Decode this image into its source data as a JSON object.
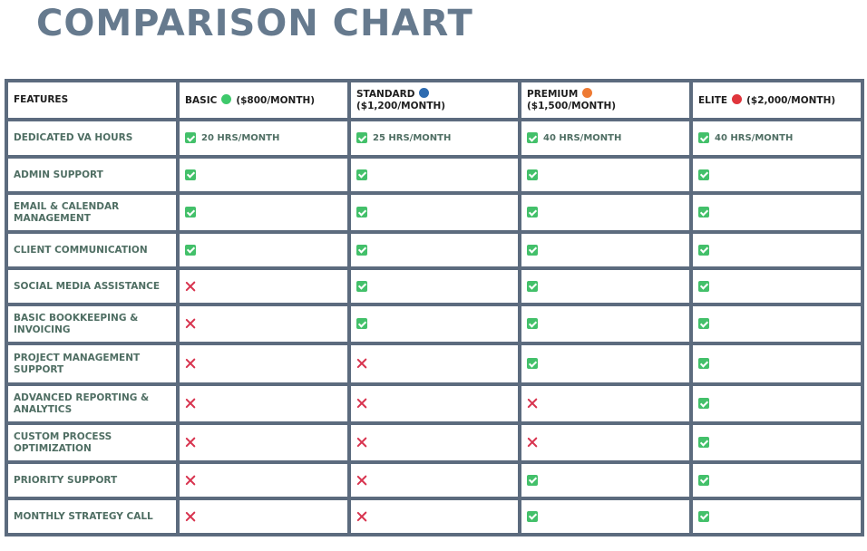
{
  "title": "Comparison Chart",
  "colors": {
    "title": "#667a8e",
    "border": "#5c6b7e",
    "feature_text": "#4f6e63",
    "check": "#43c06a",
    "cross": "#d8344f"
  },
  "header": {
    "features_label": "Features",
    "plans": [
      {
        "name": "Basic",
        "price": "($800/month)",
        "dot_color": "#3ec96b"
      },
      {
        "name": "Standard",
        "price": "($1,200/month)",
        "dot_color": "#2e6bb0"
      },
      {
        "name": "Premium",
        "price": "($1,500/month)",
        "dot_color": "#ee7a33"
      },
      {
        "name": "Elite",
        "price": "($2,000/month)",
        "dot_color": "#e0353c"
      }
    ]
  },
  "rows": [
    {
      "feature": "Dedicated VA Hours",
      "values": [
        "check",
        "check",
        "check",
        "check"
      ],
      "notes": [
        "20 hrs/month",
        "25 hrs/month",
        "40 hrs/month",
        "40 hrs/month"
      ]
    },
    {
      "feature": "Admin Support",
      "values": [
        "check",
        "check",
        "check",
        "check"
      ]
    },
    {
      "feature": "Email & Calendar Management",
      "values": [
        "check",
        "check",
        "check",
        "check"
      ]
    },
    {
      "feature": "Client Communication",
      "values": [
        "check",
        "check",
        "check",
        "check"
      ]
    },
    {
      "feature": "Social Media Assistance",
      "values": [
        "cross",
        "check",
        "check",
        "check"
      ]
    },
    {
      "feature": "Basic Bookkeeping & Invoicing",
      "values": [
        "cross",
        "check",
        "check",
        "check"
      ]
    },
    {
      "feature": "Project Management Support",
      "values": [
        "cross",
        "cross",
        "check",
        "check"
      ]
    },
    {
      "feature": "Advanced Reporting & Analytics",
      "values": [
        "cross",
        "cross",
        "cross",
        "check"
      ]
    },
    {
      "feature": "Custom Process Optimization",
      "values": [
        "cross",
        "cross",
        "cross",
        "check"
      ]
    },
    {
      "feature": "Priority Support",
      "values": [
        "cross",
        "cross",
        "check",
        "check"
      ]
    },
    {
      "feature": "Monthly Strategy Call",
      "values": [
        "cross",
        "cross",
        "check",
        "check"
      ]
    }
  ]
}
